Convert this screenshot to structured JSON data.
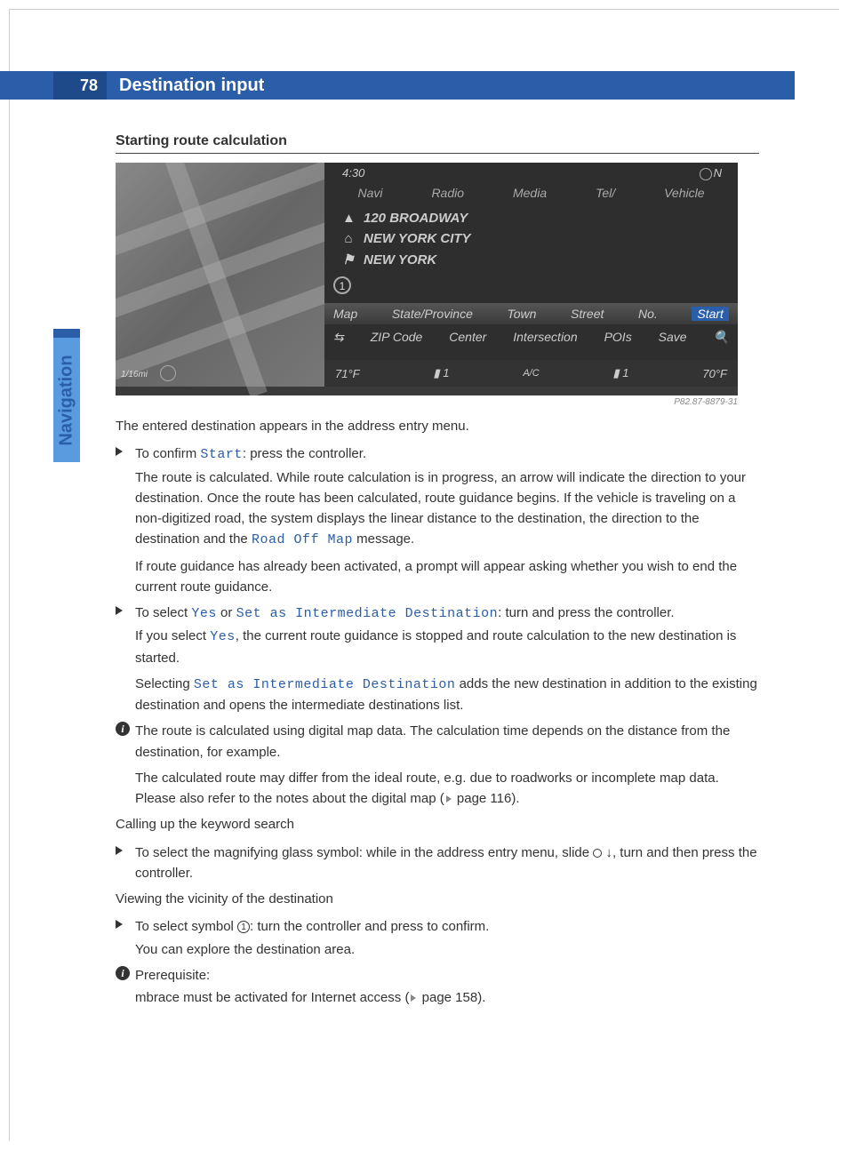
{
  "header": {
    "page_number": "78",
    "title": "Destination input"
  },
  "side_tab": "Navigation",
  "section_heading": "Starting route calculation",
  "screenshot": {
    "time": "4:30",
    "compass": "N",
    "tabs": [
      "Navi",
      "Radio",
      "Media",
      "Tel/",
      "Vehicle"
    ],
    "dest_lines": {
      "street": "120 BROADWAY",
      "city": "NEW YORK CITY",
      "state": "NEW YORK"
    },
    "circle_label": "1",
    "menu_row1": [
      "Map",
      "State/Province",
      "Town",
      "Street",
      "No."
    ],
    "menu_row1_start": "Start",
    "menu_row2": [
      "ZIP Code",
      "Center",
      "Intersection",
      "POIs",
      "Save"
    ],
    "bottom": {
      "temp_left": "71°F",
      "seat_left": "1",
      "ac": "A/C",
      "seat_right": "1",
      "temp_right": "70°F"
    },
    "scale": "1/16mi",
    "image_code": "P82.87-8879-31",
    "colors": {
      "panel_bg": "#2e2e2e",
      "map_bg": "#777777",
      "text": "#cccccc",
      "accent": "#2b5ea8"
    }
  },
  "body": {
    "intro": "The entered destination appears in the address entry menu.",
    "b1_lead": "To confirm ",
    "b1_term": "Start",
    "b1_tail": ": press the controller.",
    "b1_p1a": "The route is calculated. While route calculation is in progress, an arrow will indicate the direction to your destination. Once the route has been calculated, route guidance begins. If the vehicle is traveling on a non-digitized road, the system displays the linear distance to the destination, the direction to the destination and the ",
    "b1_term2": "Road Off Map",
    "b1_p1b": " message.",
    "b1_p2": "If route guidance has already been activated, a prompt will appear asking whether you wish to end the current route guidance.",
    "b2_lead": "To select ",
    "b2_term_yes": "Yes",
    "b2_or": " or ",
    "b2_term_sid": "Set as Intermediate Destination",
    "b2_tail": ": turn and press the controller.",
    "b2_p1a": "If you select ",
    "b2_p1b": ", the current route guidance is stopped and route calculation to the new destination is started.",
    "b2_p2a": "Selecting ",
    "b2_p2b": " adds the new destination in addition to the existing destination and opens the intermediate destinations list.",
    "info1_p1": "The route is calculated using digital map data. The calculation time depends on the distance from the destination, for example.",
    "info1_p2a": "The calculated route may differ from the ideal route, e.g. due to roadworks or incomplete map data. Please also refer to the notes about the digital map (",
    "info1_p2_ref": " page 116).",
    "sub1": "Calling up the keyword search",
    "b3_a": "To select the magnifying glass symbol: while in the address entry menu, slide ",
    "b3_b": ", turn and then press the controller.",
    "sub2": "Viewing the vicinity of the destination",
    "b4_a": "To select symbol ",
    "b4_circ": "1",
    "b4_b": ": turn the controller and press to confirm.",
    "b4_p": "You can explore the destination area.",
    "info2_lead": "Prerequisite:",
    "info2_p_a": "mbrace must be activated for Internet access (",
    "info2_p_ref": " page 158)."
  }
}
